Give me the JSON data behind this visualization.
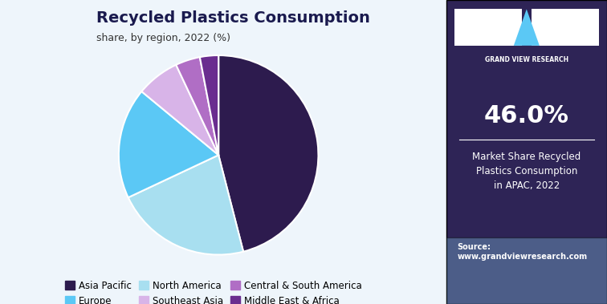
{
  "title": "Recycled Plastics Consumption",
  "subtitle": "share, by region, 2022 (%)",
  "segments": [
    {
      "label": "Asia Pacific",
      "value": 46.0,
      "color": "#2d1b4e"
    },
    {
      "label": "North America",
      "value": 22.0,
      "color": "#a8dff0"
    },
    {
      "label": "Europe",
      "value": 18.0,
      "color": "#5bc8f5"
    },
    {
      "label": "Southeast Asia",
      "value": 7.0,
      "color": "#d8b4e8"
    },
    {
      "label": "Central & South America",
      "value": 4.0,
      "color": "#b06ec5"
    },
    {
      "label": "Middle East & Africa",
      "value": 3.0,
      "color": "#6a2d8f"
    }
  ],
  "legend_order": [
    "Asia Pacific",
    "Europe",
    "North America",
    "Southeast Asia",
    "Central & South America",
    "Middle East & Africa"
  ],
  "sidebar_bg": "#2e2456",
  "sidebar_pct": "46.0%",
  "sidebar_text": "Market Share Recycled\nPlastics Consumption\nin APAC, 2022",
  "sidebar_source": "Source:\nwww.grandviewresearch.com",
  "bg_color": "#eef5fb",
  "title_color": "#1a1a4e",
  "subtitle_color": "#333333",
  "start_angle": 90
}
